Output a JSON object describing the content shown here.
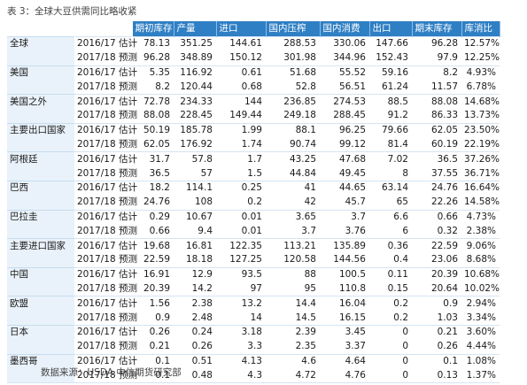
{
  "title": "表 3：全球大豆供需同比略收紧",
  "source": "数据来源：USDA 中信期货研究部",
  "headers": [
    "期初库存",
    "产量",
    "进口",
    "国内压榨",
    "国内消费",
    "出口",
    "期末库存",
    "库消比"
  ],
  "rows": [
    {
      "country": "全球",
      "items": [
        {
          "year": "2016/17 估计",
          "vals": [
            "78.13",
            "351.25",
            "144.61",
            "288.53",
            "330.06",
            "147.66",
            "96.28",
            "12.57%"
          ]
        },
        {
          "year": "2017/18 预测",
          "vals": [
            "96.28",
            "348.89",
            "150.12",
            "301.98",
            "344.96",
            "152.43",
            "97.9",
            "12.25%"
          ]
        }
      ]
    },
    {
      "country": "美国",
      "items": [
        {
          "year": "2016/17 估计",
          "vals": [
            "5.35",
            "116.92",
            "0.61",
            "51.68",
            "55.52",
            "59.16",
            "8.2",
            "4.93%"
          ]
        },
        {
          "year": "2017/18 预测",
          "vals": [
            "8.2",
            "120.44",
            "0.68",
            "52.8",
            "56.51",
            "61.24",
            "11.57",
            "6.78%"
          ]
        }
      ]
    },
    {
      "country": "美国之外",
      "items": [
        {
          "year": "2016/17 估计",
          "vals": [
            "72.78",
            "234.33",
            "144",
            "236.85",
            "274.53",
            "88.5",
            "88.08",
            "14.68%"
          ]
        },
        {
          "year": "2017/18 预测",
          "vals": [
            "88.08",
            "228.45",
            "149.44",
            "249.18",
            "288.45",
            "91.2",
            "86.33",
            "13.73%"
          ]
        }
      ]
    },
    {
      "country": "主要出口国家",
      "items": [
        {
          "year": "2016/17 估计",
          "vals": [
            "50.19",
            "185.78",
            "1.99",
            "88.1",
            "96.25",
            "79.66",
            "62.05",
            "23.50%"
          ]
        },
        {
          "year": "2017/18 预测",
          "vals": [
            "62.05",
            "176.92",
            "1.74",
            "90.74",
            "99.12",
            "81.4",
            "60.19",
            "22.19%"
          ]
        }
      ]
    },
    {
      "country": "阿根廷",
      "items": [
        {
          "year": "2016/17 估计",
          "vals": [
            "31.7",
            "57.8",
            "1.7",
            "43.25",
            "47.68",
            "7.02",
            "36.5",
            "37.26%"
          ]
        },
        {
          "year": "2017/18 预测",
          "vals": [
            "36.5",
            "57",
            "1.5",
            "44.84",
            "49.45",
            "8",
            "37.55",
            "36.71%"
          ]
        }
      ]
    },
    {
      "country": "巴西",
      "items": [
        {
          "year": "2016/17 估计",
          "vals": [
            "18.2",
            "114.1",
            "0.25",
            "41",
            "44.65",
            "63.14",
            "24.76",
            "16.64%"
          ]
        },
        {
          "year": "2017/18 预测",
          "vals": [
            "24.76",
            "108",
            "0.2",
            "42",
            "45.7",
            "65",
            "22.26",
            "14.58%"
          ]
        }
      ]
    },
    {
      "country": "巴拉圭",
      "items": [
        {
          "year": "2016/17 估计",
          "vals": [
            "0.29",
            "10.67",
            "0.01",
            "3.65",
            "3.7",
            "6.6",
            "0.66",
            "4.73%"
          ]
        },
        {
          "year": "2017/18 预测",
          "vals": [
            "0.66",
            "9.4",
            "0.01",
            "3.7",
            "3.76",
            "6",
            "0.32",
            "2.38%"
          ]
        }
      ]
    },
    {
      "country": "主要进口国家",
      "items": [
        {
          "year": "2016/17 估计",
          "vals": [
            "19.68",
            "16.81",
            "122.35",
            "113.21",
            "135.89",
            "0.36",
            "22.59",
            "9.06%"
          ]
        },
        {
          "year": "2017/18 预测",
          "vals": [
            "22.59",
            "18.18",
            "127.25",
            "120.58",
            "144.56",
            "0.4",
            "23.06",
            "8.68%"
          ]
        }
      ]
    },
    {
      "country": "中国",
      "items": [
        {
          "year": "2016/17 估计",
          "vals": [
            "16.91",
            "12.9",
            "93.5",
            "88",
            "100.5",
            "0.11",
            "20.39",
            "10.68%"
          ]
        },
        {
          "year": "2017/18 预测",
          "vals": [
            "20.39",
            "14.2",
            "97",
            "95",
            "110.8",
            "0.15",
            "20.64",
            "10.02%"
          ]
        }
      ]
    },
    {
      "country": "欧盟",
      "items": [
        {
          "year": "2016/17 估计",
          "vals": [
            "1.56",
            "2.38",
            "13.2",
            "14.4",
            "16.04",
            "0.2",
            "0.9",
            "2.94%"
          ]
        },
        {
          "year": "2017/18 预测",
          "vals": [
            "0.9",
            "2.48",
            "14",
            "14.5",
            "16.15",
            "0.2",
            "1.03",
            "3.34%"
          ]
        }
      ]
    },
    {
      "country": "日本",
      "items": [
        {
          "year": "2016/17 估计",
          "vals": [
            "0.26",
            "0.24",
            "3.18",
            "2.39",
            "3.45",
            "0",
            "0.21",
            "3.60%"
          ]
        },
        {
          "year": "2017/18 预测",
          "vals": [
            "0.21",
            "0.26",
            "3.3",
            "2.35",
            "3.37",
            "0",
            "0.26",
            "4.44%"
          ]
        }
      ]
    },
    {
      "country": "墨西哥",
      "items": [
        {
          "year": "2016/17 估计",
          "vals": [
            "0.1",
            "0.51",
            "4.13",
            "4.6",
            "4.64",
            "0",
            "0.1",
            "1.08%"
          ]
        },
        {
          "year": "2017/18 预测",
          "vals": [
            "0.1",
            "0.48",
            "4.3",
            "4.72",
            "4.76",
            "0",
            "0.13",
            "1.37%"
          ]
        }
      ]
    }
  ]
}
